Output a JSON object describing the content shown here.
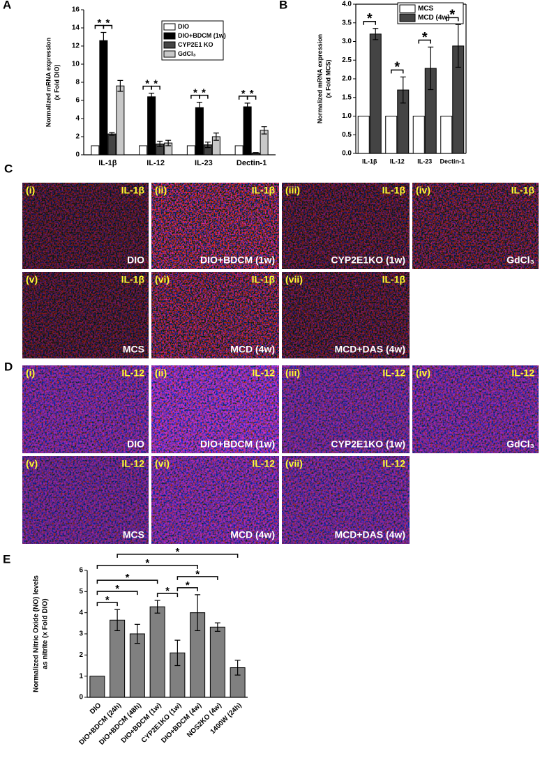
{
  "chart_data": [
    {
      "type": "bar",
      "panel_label": "A",
      "y_label": [
        "Normalized mRNA expression",
        "(x Fold DIO)"
      ],
      "categories": [
        "IL-1β",
        "IL-12",
        "IL-23",
        "Dectin-1"
      ],
      "series": [
        {
          "name": "DIO",
          "color": "#ffffff",
          "values": [
            1,
            1,
            1,
            1
          ],
          "errors": [
            0,
            0,
            0,
            0
          ]
        },
        {
          "name": "DIO+BDCM (1w)",
          "color": "#000000",
          "values": [
            12.6,
            6.4,
            5.2,
            5.3
          ],
          "errors": [
            0.9,
            0.4,
            0.6,
            0.4
          ]
        },
        {
          "name": "CYP2E1 KO",
          "color": "#444444",
          "values": [
            2.3,
            1.2,
            1.1,
            0.2
          ],
          "errors": [
            0.15,
            0.3,
            0.3,
            0.05
          ]
        },
        {
          "name": "GdCl₃",
          "color": "#c8c8c8",
          "values": [
            7.6,
            1.3,
            2.0,
            2.7
          ],
          "errors": [
            0.6,
            0.3,
            0.4,
            0.4
          ]
        }
      ],
      "ylim": [
        0,
        16
      ],
      "yticks": [
        0,
        2,
        4,
        6,
        8,
        10,
        12,
        14,
        16
      ],
      "significance": [
        {
          "label": "*",
          "category": 0,
          "pair": [
            0,
            1
          ]
        },
        {
          "label": "*",
          "category": 0,
          "pair": [
            1,
            2
          ]
        },
        {
          "label": "*",
          "category": 1,
          "pair": [
            0,
            1
          ]
        },
        {
          "label": "*",
          "category": 1,
          "pair": [
            1,
            2
          ]
        },
        {
          "label": "*",
          "category": 2,
          "pair": [
            0,
            1
          ]
        },
        {
          "label": "*",
          "category": 2,
          "pair": [
            1,
            2
          ]
        },
        {
          "label": "*",
          "category": 3,
          "pair": [
            0,
            1
          ]
        },
        {
          "label": "*",
          "category": 3,
          "pair": [
            1,
            2
          ]
        }
      ]
    },
    {
      "type": "bar",
      "panel_label": "B",
      "y_label": [
        "Normalized mRNA expression",
        "(x Fold MCS)"
      ],
      "categories": [
        "IL-1β",
        "IL-12",
        "IL-23",
        "Dectin-1"
      ],
      "series": [
        {
          "name": "MCS",
          "color": "#ffffff",
          "values": [
            1,
            1,
            1,
            1
          ],
          "errors": [
            0,
            0,
            0,
            0
          ]
        },
        {
          "name": "MCD (4w)",
          "color": "#444444",
          "values": [
            3.2,
            1.7,
            2.28,
            2.88
          ],
          "errors": [
            0.15,
            0.35,
            0.57,
            0.57
          ]
        }
      ],
      "ylim": [
        0,
        4
      ],
      "yticks": [
        {
          "value": 0,
          "label": "0.0"
        },
        {
          "value": 0.5,
          "label": "0.5"
        },
        {
          "value": 1,
          "label": "1.0"
        },
        {
          "value": 1.5,
          "label": "1.5"
        },
        {
          "value": 2,
          "label": "2.0"
        },
        {
          "value": 2.5,
          "label": "2.5"
        },
        {
          "value": 3,
          "label": "3.0"
        },
        {
          "value": 3.5,
          "label": "3.5"
        },
        {
          "value": 4,
          "label": "4.0"
        }
      ],
      "significance": [
        {
          "label": "*",
          "category": 0,
          "pair": [
            0,
            1
          ]
        },
        {
          "label": "*",
          "category": 1,
          "pair": [
            0,
            1
          ]
        },
        {
          "label": "*",
          "category": 2,
          "pair": [
            0,
            1
          ]
        },
        {
          "label": "*",
          "category": 3,
          "pair": [
            0,
            1
          ]
        }
      ]
    },
    {
      "type": "bar",
      "panel_label": "E",
      "y_label": [
        "Normalized Nitric Oxide (NO) levels",
        "as nitrite (x Fold DIO)"
      ],
      "categories": [
        "DIO",
        "DIO+BDCM (24h)",
        "DIO+BDCM (48h)",
        "DIO+BDCM (1w)",
        "CYP2E1KO (1w)",
        "DIO+BDCM (4w)",
        "NOS2KO (4w)",
        "1400W (24h)"
      ],
      "values": [
        1,
        3.65,
        3.0,
        4.28,
        2.1,
        4.0,
        3.32,
        1.4
      ],
      "errors": [
        0,
        0.5,
        0.45,
        0.3,
        0.6,
        0.85,
        0.2,
        0.35
      ],
      "color": "#808080",
      "ylim": [
        0,
        6
      ],
      "yticks": [
        0,
        1,
        2,
        3,
        4,
        5,
        6
      ],
      "significance": [
        {
          "label": "*",
          "pair": [
            0,
            1
          ]
        },
        {
          "label": "*",
          "pair": [
            3,
            4
          ]
        },
        {
          "label": "*",
          "pair": [
            4,
            5
          ]
        },
        {
          "label": "*",
          "pair": [
            0,
            2
          ]
        },
        {
          "label": "*",
          "pair": [
            0,
            3
          ]
        },
        {
          "label": "*",
          "pair": [
            4,
            6
          ]
        },
        {
          "label": "*",
          "pair": [
            0,
            5
          ]
        },
        {
          "label": "*",
          "pair": [
            1,
            7
          ]
        }
      ]
    }
  ],
  "image_panels": [
    {
      "panel_label": "C",
      "images": [
        {
          "index": "(i)",
          "marker": "IL-1β",
          "condition": "DIO"
        },
        {
          "index": "(ii)",
          "marker": "IL-1β",
          "condition": "DIO+BDCM (1w)"
        },
        {
          "index": "(iii)",
          "marker": "IL-1β",
          "condition": "CYP2E1KO (1w)"
        },
        {
          "index": "(iv)",
          "marker": "IL-1β",
          "condition": "GdCl₃"
        },
        {
          "index": "(v)",
          "marker": "IL-1β",
          "condition": "MCS"
        },
        {
          "index": "(vi)",
          "marker": "IL-1β",
          "condition": "MCD (4w)"
        },
        {
          "index": "(vii)",
          "marker": "IL-1β",
          "condition": "MCD+DAS (4w)"
        }
      ]
    },
    {
      "panel_label": "D",
      "images": [
        {
          "index": "(i)",
          "marker": "IL-12",
          "condition": "DIO"
        },
        {
          "index": "(ii)",
          "marker": "IL-12",
          "condition": "DIO+BDCM (1w)"
        },
        {
          "index": "(iii)",
          "marker": "IL-12",
          "condition": "CYP2E1KO (1w)"
        },
        {
          "index": "(iv)",
          "marker": "IL-12",
          "condition": "GdCl₃"
        },
        {
          "index": "(v)",
          "marker": "IL-12",
          "condition": "MCS"
        },
        {
          "index": "(vi)",
          "marker": "IL-12",
          "condition": "MCD (4w)"
        },
        {
          "index": "(vii)",
          "marker": "IL-12",
          "condition": "MCD+DAS (4w)"
        }
      ]
    }
  ]
}
